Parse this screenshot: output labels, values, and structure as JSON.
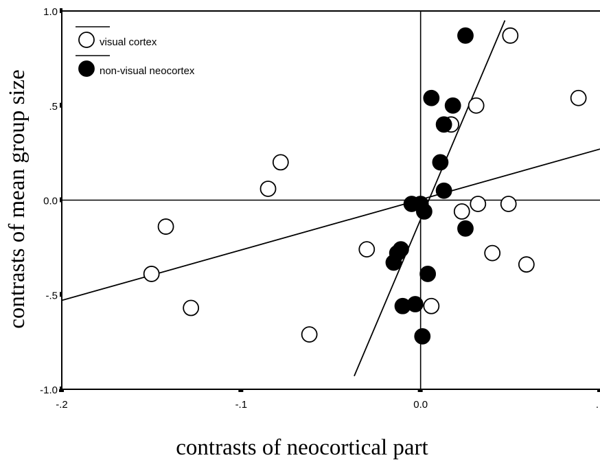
{
  "chart_data": {
    "type": "scatter",
    "title": "",
    "xlabel": "contrasts of neocortical part",
    "ylabel": "contrasts of mean group size",
    "xlim": [
      -0.2,
      0.1
    ],
    "ylim": [
      -1.0,
      1.0
    ],
    "x_ticks": [
      -0.2,
      -0.1,
      0.0,
      0.1
    ],
    "x_tick_labels": [
      "-.2",
      "-.1",
      "0.0",
      "."
    ],
    "y_ticks": [
      -1.0,
      -0.5,
      0.0,
      0.5,
      1.0
    ],
    "y_tick_labels": [
      "-1.0",
      "-.5",
      "0.0",
      ".5",
      "1.0"
    ],
    "grid": false,
    "reference_lines": {
      "x": 0.0,
      "y": 0.0
    },
    "legend_position": "top-left",
    "series": [
      {
        "name": "visual cortex",
        "marker": "open-circle",
        "color": "#000000",
        "points": [
          [
            0.05,
            0.87
          ],
          [
            0.088,
            0.54
          ],
          [
            0.031,
            0.5
          ],
          [
            0.017,
            0.4
          ],
          [
            -0.085,
            0.06
          ],
          [
            -0.078,
            0.2
          ],
          [
            0.032,
            -0.02
          ],
          [
            0.049,
            -0.02
          ],
          [
            0.023,
            -0.06
          ],
          [
            -0.142,
            -0.14
          ],
          [
            -0.03,
            -0.26
          ],
          [
            0.04,
            -0.28
          ],
          [
            0.059,
            -0.34
          ],
          [
            -0.15,
            -0.39
          ],
          [
            -0.128,
            -0.57
          ],
          [
            0.006,
            -0.56
          ],
          [
            -0.062,
            -0.71
          ]
        ],
        "fit_line": {
          "x1": -0.2,
          "y1": -0.53,
          "x2": 0.1,
          "y2": 0.27
        }
      },
      {
        "name": "non-visual neocortex",
        "marker": "filled-circle",
        "color": "#000000",
        "points": [
          [
            0.025,
            0.87
          ],
          [
            0.006,
            0.54
          ],
          [
            0.018,
            0.5
          ],
          [
            0.013,
            0.4
          ],
          [
            0.011,
            0.2
          ],
          [
            0.013,
            0.05
          ],
          [
            -0.005,
            -0.02
          ],
          [
            0.0,
            -0.02
          ],
          [
            0.002,
            -0.06
          ],
          [
            0.025,
            -0.15
          ],
          [
            -0.011,
            -0.26
          ],
          [
            -0.013,
            -0.28
          ],
          [
            -0.015,
            -0.33
          ],
          [
            0.004,
            -0.39
          ],
          [
            -0.01,
            -0.56
          ],
          [
            -0.003,
            -0.55
          ],
          [
            0.001,
            -0.72
          ]
        ],
        "fit_line": {
          "x1": -0.037,
          "y1": -0.93,
          "x2": 0.047,
          "y2": 0.95
        }
      }
    ]
  }
}
